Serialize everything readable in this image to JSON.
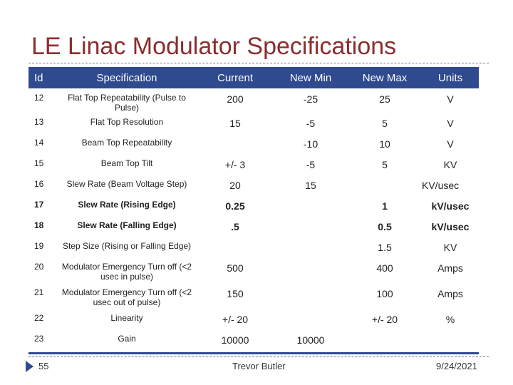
{
  "slide": {
    "title": "LE Linac Modulator Specifications",
    "page_number": "55",
    "author": "Trevor Butler",
    "date": "9/24/2021",
    "accent_color": "#2f4a8f",
    "title_color": "#8b2e2e"
  },
  "table": {
    "headers": {
      "id": "Id",
      "specification": "Specification",
      "current": "Current",
      "new_min": "New Min",
      "new_max": "New Max",
      "units": "Units"
    },
    "rows": [
      {
        "id": "12",
        "spec": "Flat Top Repeatability (Pulse to Pulse)",
        "current": "200",
        "min": "-25",
        "max": "25",
        "units": "V"
      },
      {
        "id": "13",
        "spec": "Flat Top Resolution",
        "current": "15",
        "min": "-5",
        "max": "5",
        "units": "V"
      },
      {
        "id": "14",
        "spec": "Beam Top Repeatability",
        "current": "",
        "min": "-10",
        "max": "10",
        "units": "V"
      },
      {
        "id": "15",
        "spec": "Beam Top Tilt",
        "current": "+/- 3",
        "min": "-5",
        "max": "5",
        "units": "KV"
      },
      {
        "id": "16",
        "spec": "Slew Rate (Beam Voltage Step)",
        "current": "20",
        "min": "15",
        "max": "",
        "units": "KV/usec"
      },
      {
        "id": "17",
        "spec": "Slew Rate (Rising Edge)",
        "current": "0.25",
        "min": "",
        "max": "1",
        "units": "kV/usec"
      },
      {
        "id": "18",
        "spec": "Slew Rate (Falling Edge)",
        "current": ".5",
        "min": "",
        "max": "0.5",
        "units": "kV/usec"
      },
      {
        "id": "19",
        "spec": "Step Size (Rising or Falling Edge)",
        "current": "",
        "min": "",
        "max": "1.5",
        "units": "KV"
      },
      {
        "id": "20",
        "spec": "Modulator Emergency Turn off (<2 usec in pulse)",
        "current": "500",
        "min": "",
        "max": "400",
        "units": "Amps"
      },
      {
        "id": "21",
        "spec": "Modulator Emergency Turn off (<2 usec out of pulse)",
        "current": "150",
        "min": "",
        "max": "100",
        "units": "Amps"
      },
      {
        "id": "22",
        "spec": "Linearity",
        "current": "+/- 20",
        "min": "",
        "max": "+/- 20",
        "units": "%"
      },
      {
        "id": "23",
        "spec": "Gain",
        "current": "10000",
        "min": "10000",
        "max": "",
        "units": ""
      }
    ]
  }
}
